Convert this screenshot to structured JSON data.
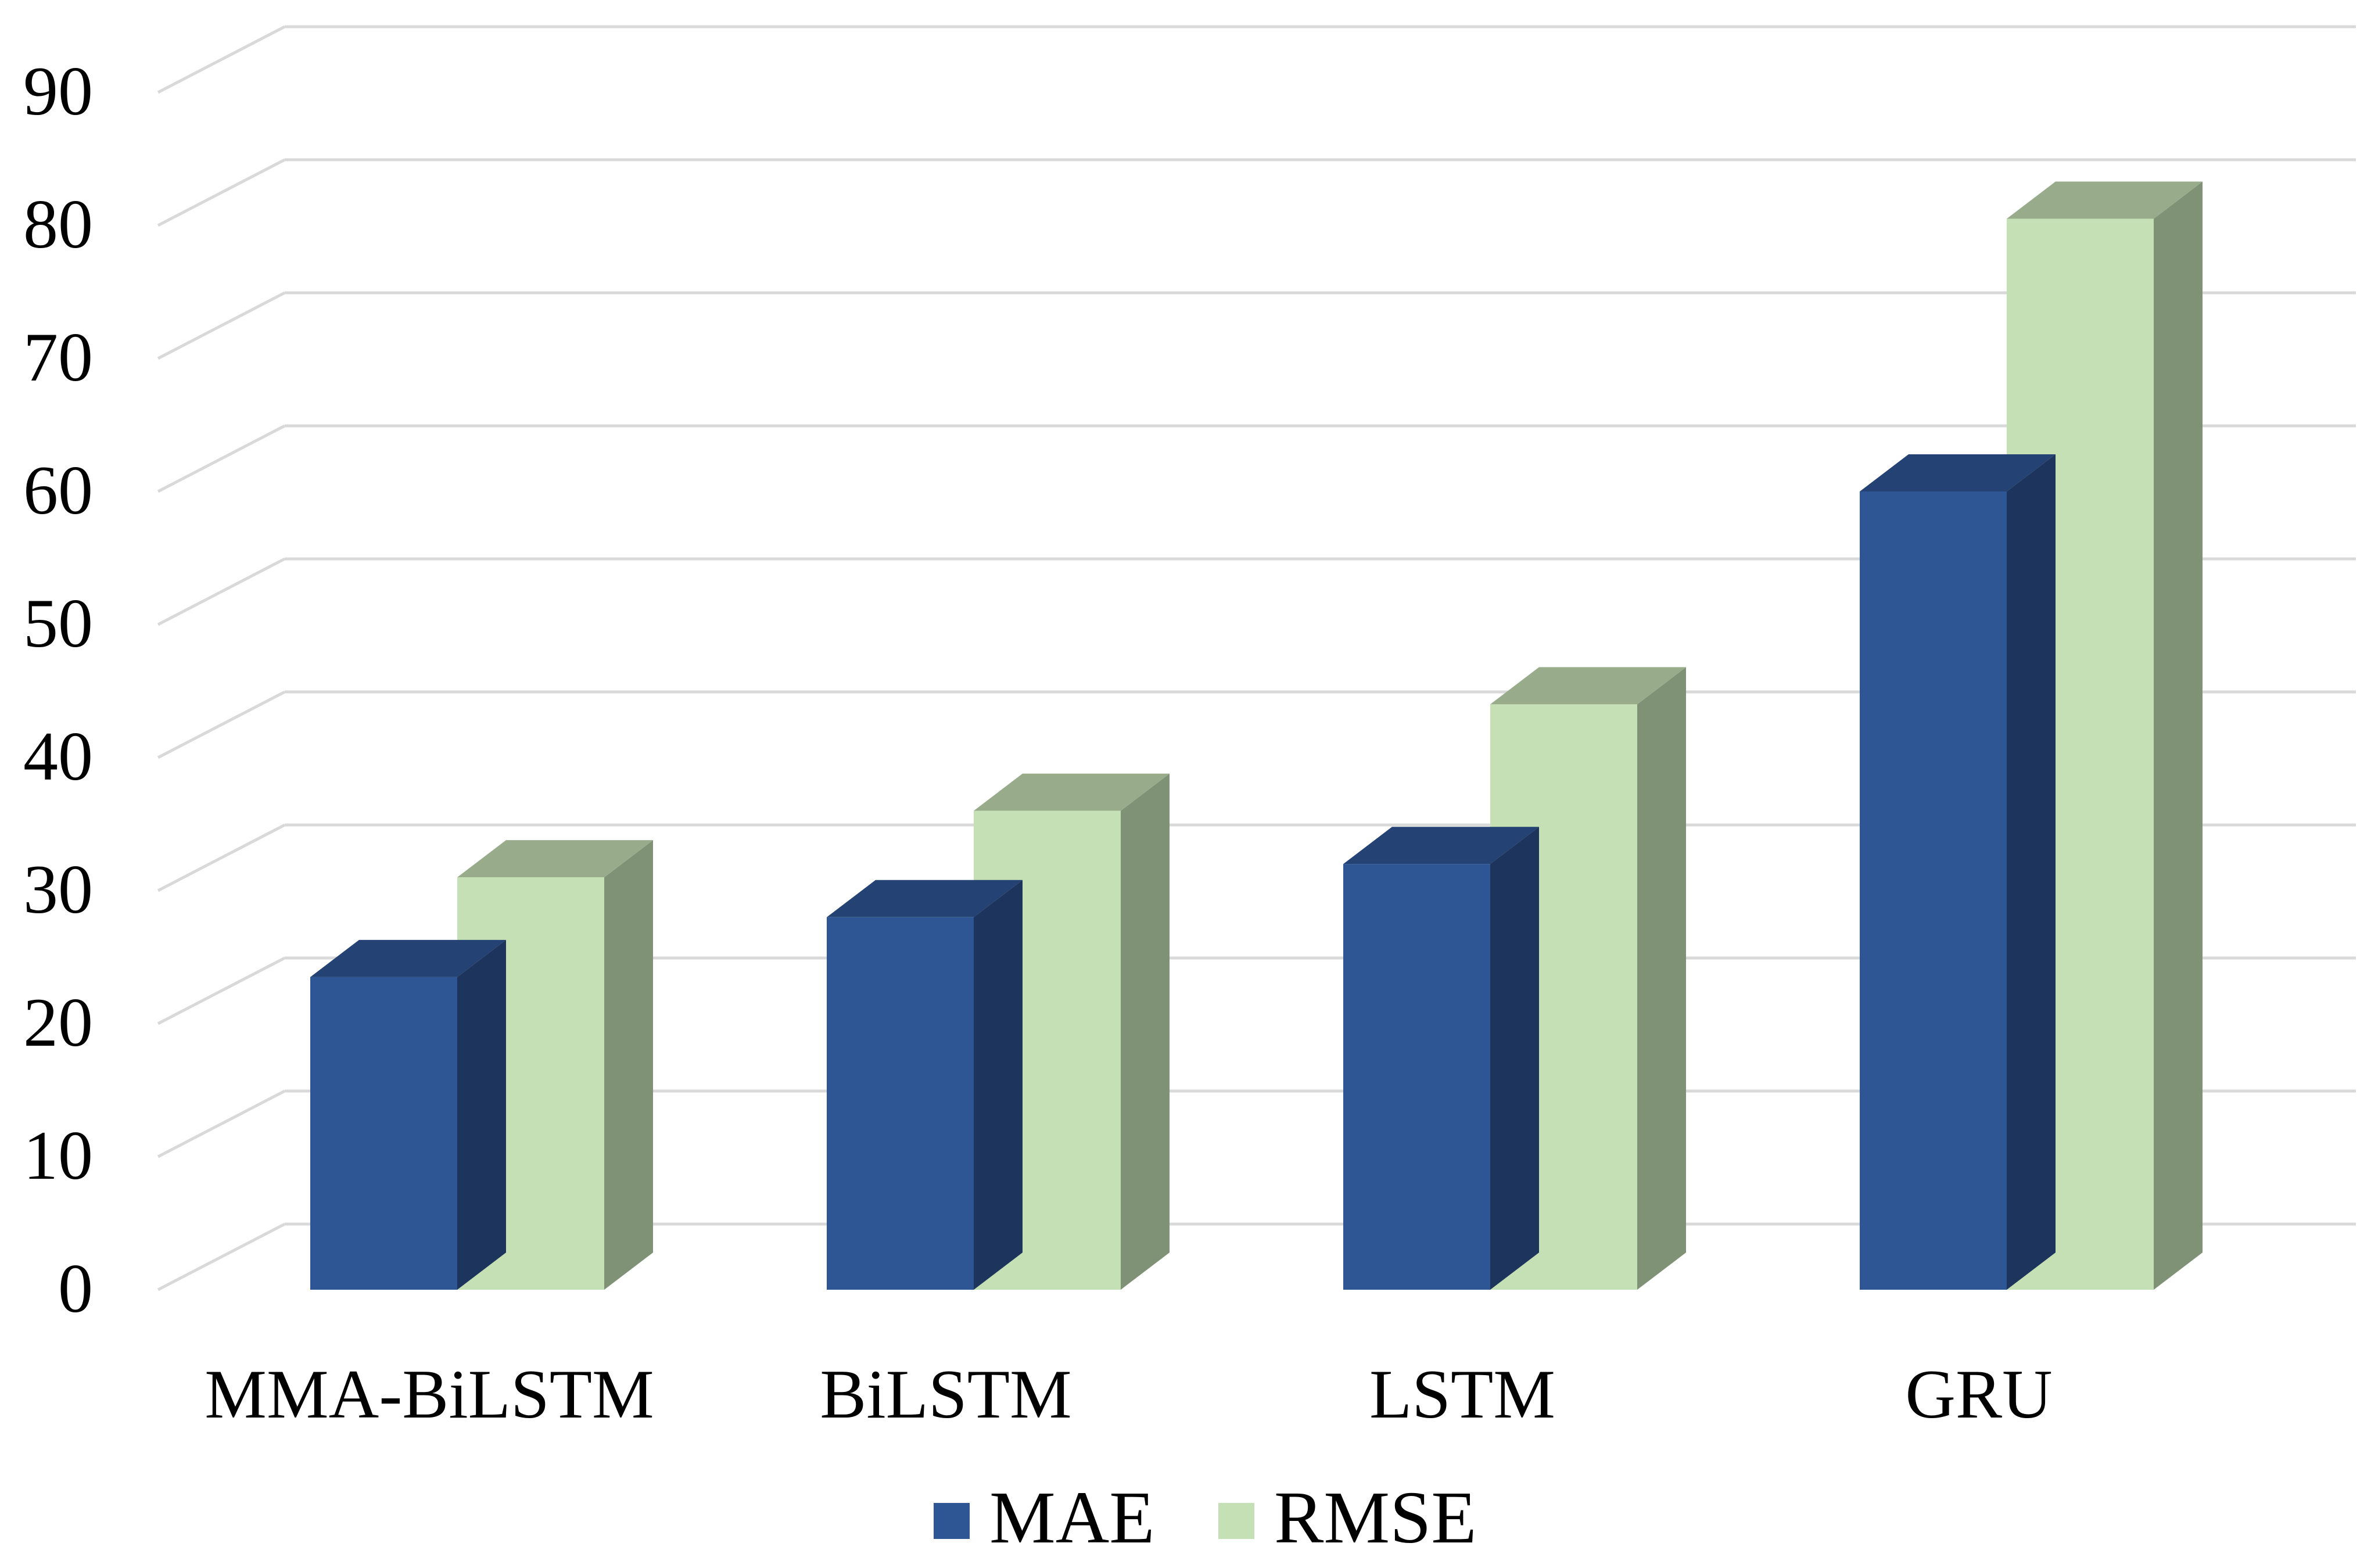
{
  "chart_data": {
    "type": "bar",
    "title": "",
    "xlabel": "",
    "ylabel": "",
    "ylim": [
      0,
      95
    ],
    "yticks": [
      0,
      10,
      20,
      30,
      40,
      50,
      60,
      70,
      80,
      90
    ],
    "categories": [
      "MMA-BiLSTM",
      "BiLSTM",
      "LSTM",
      "GRU"
    ],
    "series": [
      {
        "name": "MAE",
        "values": [
          23.5,
          28,
          32,
          60
        ],
        "color": "#2E5594"
      },
      {
        "name": "RMSE",
        "values": [
          31,
          36,
          44,
          80.5
        ],
        "color": "#C5E0B4"
      }
    ],
    "grid": true,
    "three_d": true,
    "legend_position": "bottom-center"
  }
}
